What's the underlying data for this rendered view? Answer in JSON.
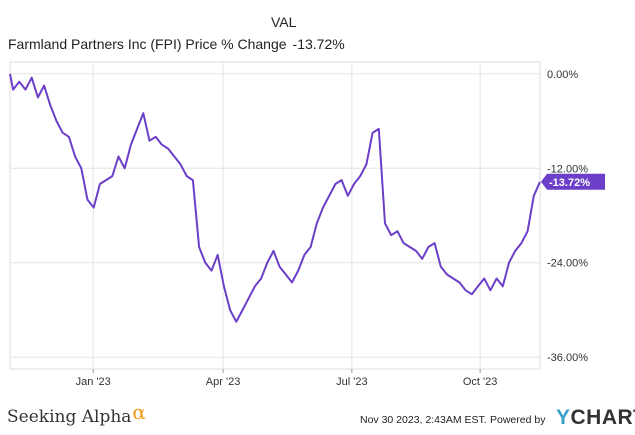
{
  "header": {
    "legend_title": "VAL",
    "series_name": "Farmland Partners Inc (FPI) Price % Change",
    "series_value": "-13.72%"
  },
  "colors": {
    "line": "#6b3fc8",
    "grid": "#e4e4e4",
    "brand_alpha": "#f29a1a",
    "ycharts_y": "#3ca1c8"
  },
  "chart_data": {
    "type": "line",
    "x_ticks": [
      "Jan '23",
      "Apr '23",
      "Jul '23",
      "Oct '23"
    ],
    "y_ticks": [
      "0.00%",
      "-12.00%",
      "-24.00%",
      "-36.00%"
    ],
    "ylim": [
      -37.5,
      1.5
    ],
    "end_label": "-13.72%",
    "series": [
      {
        "name": "Farmland Partners Inc (FPI) Price % Change",
        "points": [
          [
            0,
            0.0
          ],
          [
            0.01,
            -2.0
          ],
          [
            0.03,
            -1.0
          ],
          [
            0.05,
            -2.0
          ],
          [
            0.07,
            -0.5
          ],
          [
            0.09,
            -3.0
          ],
          [
            0.11,
            -1.5
          ],
          [
            0.13,
            -4.0
          ],
          [
            0.15,
            -6.0
          ],
          [
            0.17,
            -7.5
          ],
          [
            0.19,
            -8.0
          ],
          [
            0.21,
            -10.5
          ],
          [
            0.23,
            -12.0
          ],
          [
            0.25,
            -16.0
          ],
          [
            0.27,
            -17.0
          ],
          [
            0.29,
            -14.0
          ],
          [
            0.31,
            -13.5
          ],
          [
            0.33,
            -13.0
          ],
          [
            0.35,
            -10.5
          ],
          [
            0.37,
            -12.0
          ],
          [
            0.39,
            -9.0
          ],
          [
            0.41,
            -7.0
          ],
          [
            0.43,
            -5.0
          ],
          [
            0.45,
            -8.5
          ],
          [
            0.47,
            -8.0
          ],
          [
            0.49,
            -9.0
          ],
          [
            0.51,
            -9.5
          ],
          [
            0.53,
            -10.5
          ],
          [
            0.55,
            -11.5
          ],
          [
            0.57,
            -13.0
          ],
          [
            0.59,
            -13.5
          ],
          [
            0.61,
            -22.0
          ],
          [
            0.63,
            -24.0
          ],
          [
            0.65,
            -25.0
          ],
          [
            0.67,
            -23.0
          ],
          [
            0.69,
            -27.0
          ],
          [
            0.71,
            -30.0
          ],
          [
            0.73,
            -31.5
          ],
          [
            0.75,
            -30.0
          ],
          [
            0.77,
            -28.5
          ],
          [
            0.79,
            -27.0
          ],
          [
            0.81,
            -26.0
          ],
          [
            0.83,
            -24.0
          ],
          [
            0.85,
            -22.5
          ],
          [
            0.87,
            -24.5
          ],
          [
            0.89,
            -25.5
          ],
          [
            0.91,
            -26.5
          ],
          [
            0.93,
            -25.0
          ],
          [
            0.95,
            -23.0
          ],
          [
            0.97,
            -22.0
          ],
          [
            0.99,
            -19.0
          ],
          [
            1.01,
            -17.0
          ],
          [
            1.03,
            -15.5
          ],
          [
            1.05,
            -14.0
          ],
          [
            1.07,
            -13.5
          ],
          [
            1.09,
            -15.5
          ],
          [
            1.11,
            -14.0
          ],
          [
            1.13,
            -13.0
          ],
          [
            1.15,
            -11.5
          ],
          [
            1.17,
            -7.5
          ],
          [
            1.19,
            -7.0
          ],
          [
            1.21,
            -19.0
          ],
          [
            1.23,
            -20.5
          ],
          [
            1.25,
            -20.0
          ],
          [
            1.27,
            -21.5
          ],
          [
            1.29,
            -22.0
          ],
          [
            1.31,
            -22.5
          ],
          [
            1.33,
            -23.5
          ],
          [
            1.35,
            -22.0
          ],
          [
            1.37,
            -21.5
          ],
          [
            1.39,
            -24.5
          ],
          [
            1.41,
            -25.5
          ],
          [
            1.43,
            -26.0
          ],
          [
            1.45,
            -26.5
          ],
          [
            1.47,
            -27.5
          ],
          [
            1.49,
            -28.0
          ],
          [
            1.51,
            -27.0
          ],
          [
            1.53,
            -26.0
          ],
          [
            1.55,
            -27.5
          ],
          [
            1.57,
            -26.0
          ],
          [
            1.59,
            -27.0
          ],
          [
            1.61,
            -24.0
          ],
          [
            1.63,
            -22.5
          ],
          [
            1.65,
            -21.5
          ],
          [
            1.67,
            -20.0
          ],
          [
            1.69,
            -15.5
          ],
          [
            1.71,
            -13.72
          ]
        ]
      }
    ]
  },
  "footer": {
    "brand": "Seeking Alpha",
    "brand_alpha": "α",
    "timestamp": "Nov 30 2023, 2:43AM EST.",
    "powered_by": "Powered by",
    "ycharts_y": "Y",
    "ycharts_rest": "CHARTS"
  }
}
